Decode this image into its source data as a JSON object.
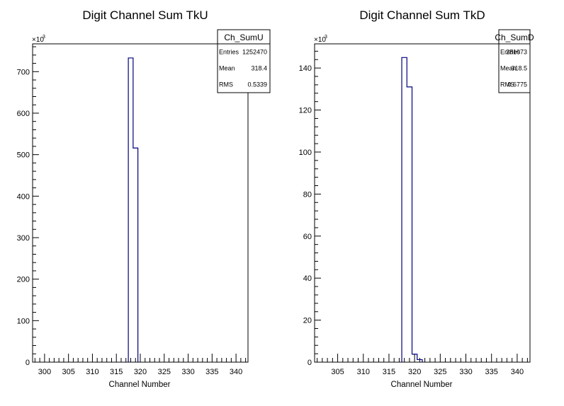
{
  "chart_data": [
    {
      "type": "bar",
      "title": "Digit Channel Sum TkU",
      "xlabel": "Channel Number",
      "ylabel": "",
      "y_multiplier_label": "×10",
      "y_multiplier_exp": "3",
      "xlim": [
        297.5,
        342.5
      ],
      "ylim": [
        0,
        767
      ],
      "x_ticks": [
        300,
        305,
        310,
        315,
        320,
        325,
        330,
        335,
        340
      ],
      "y_ticks": [
        0,
        100,
        200,
        300,
        400,
        500,
        600,
        700
      ],
      "bin_edges": [
        317.5,
        318.5,
        319.5
      ],
      "values": [
        733,
        516
      ],
      "line_color": "#00007f",
      "stats": {
        "name": "Ch_SumU",
        "rows": [
          {
            "label": "Entries",
            "value": "1252470"
          },
          {
            "label": "Mean",
            "value": "318.4"
          },
          {
            "label": "RMS",
            "value": "0.5339"
          }
        ]
      }
    },
    {
      "type": "bar",
      "title": "Digit Channel Sum TkD",
      "xlabel": "Channel Number",
      "ylabel": "",
      "y_multiplier_label": "×10",
      "y_multiplier_exp": "3",
      "xlim": [
        300.5,
        342.5
      ],
      "ylim": [
        0,
        151.5
      ],
      "x_ticks": [
        305,
        310,
        315,
        320,
        325,
        330,
        335,
        340
      ],
      "y_ticks": [
        0,
        20,
        40,
        60,
        80,
        100,
        120,
        140
      ],
      "bin_edges": [
        317.5,
        318.5,
        319.5,
        320.5,
        321.5
      ],
      "values": [
        145,
        131,
        3.8,
        1.2
      ],
      "line_color": "#00007f",
      "stats": {
        "name": "Ch_SumD",
        "rows": [
          {
            "label": "Entries",
            "value": "281073"
          },
          {
            "label": "Mean",
            "value": "318.5"
          },
          {
            "label": "RMS",
            "value": "0.6775"
          }
        ]
      }
    }
  ]
}
